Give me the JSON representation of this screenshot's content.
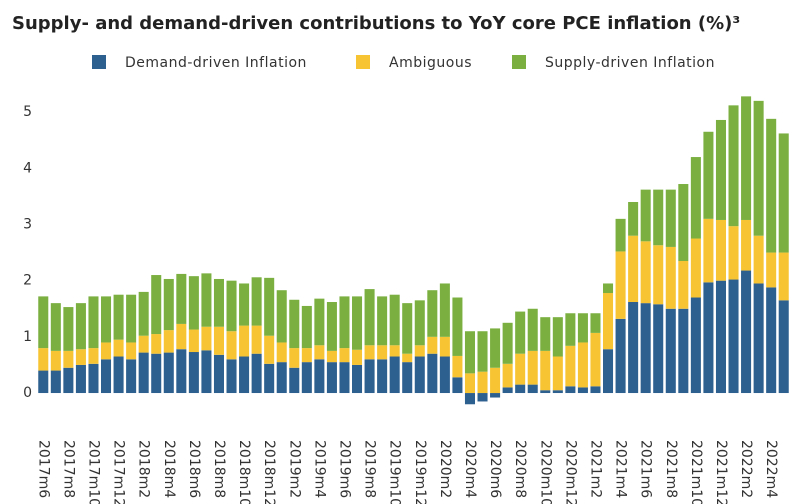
{
  "chart_data": {
    "type": "stacked_bar",
    "title": "Supply- and demand-driven contributions to YoY core PCE inflation (%)³",
    "categories": [
      "2017m6",
      null,
      "2017m8",
      null,
      "2017m10",
      null,
      "2017m12",
      null,
      "2018m2",
      null,
      "2018m4",
      null,
      "2018m6",
      null,
      "2018m8",
      null,
      "2018m10",
      null,
      "2018m12",
      null,
      "2019m2",
      null,
      "2019m4",
      null,
      "2019m6",
      null,
      "2019m8",
      null,
      "2019m10",
      null,
      "2019m12",
      null,
      "2020m2",
      null,
      "2020m4",
      null,
      "2020m6",
      null,
      "2020m8",
      null,
      "2020m10",
      null,
      "2020m12",
      null,
      "2021m2",
      null,
      "2021m4",
      null,
      "2021m6",
      null,
      "2021m8",
      null,
      "2021m10",
      null,
      "2021m12",
      null,
      "2022m2",
      null,
      "2022m4",
      null
    ],
    "series": [
      {
        "name": "Demand-driven Inflation",
        "color": "#2d5f8f",
        "values": [
          0.4,
          0.4,
          0.45,
          0.5,
          0.52,
          0.6,
          0.65,
          0.6,
          0.72,
          0.7,
          0.72,
          0.78,
          0.73,
          0.76,
          0.68,
          0.6,
          0.65,
          0.7,
          0.52,
          0.55,
          0.45,
          0.55,
          0.6,
          0.55,
          0.55,
          0.5,
          0.6,
          0.6,
          0.65,
          0.55,
          0.65,
          0.7,
          0.65,
          0.28,
          -0.2,
          -0.15,
          -0.08,
          0.1,
          0.15,
          0.15,
          0.05,
          0.05,
          0.12,
          0.1,
          0.12,
          0.78,
          1.32,
          1.62,
          1.6,
          1.58,
          1.5,
          1.5,
          1.7,
          1.97,
          2.0,
          2.02,
          2.18,
          1.95,
          1.88,
          1.65
        ]
      },
      {
        "name": "Ambiguous",
        "color": "#f7c433",
        "values": [
          0.4,
          0.35,
          0.3,
          0.28,
          0.28,
          0.3,
          0.3,
          0.3,
          0.3,
          0.35,
          0.4,
          0.45,
          0.4,
          0.42,
          0.5,
          0.5,
          0.55,
          0.5,
          0.5,
          0.35,
          0.35,
          0.25,
          0.25,
          0.2,
          0.25,
          0.27,
          0.25,
          0.25,
          0.2,
          0.15,
          0.2,
          0.3,
          0.35,
          0.38,
          0.35,
          0.38,
          0.45,
          0.42,
          0.55,
          0.6,
          0.7,
          0.6,
          0.72,
          0.8,
          0.95,
          1.0,
          1.2,
          1.18,
          1.1,
          1.05,
          1.1,
          0.85,
          1.05,
          1.13,
          1.08,
          0.95,
          0.9,
          0.85,
          0.62,
          0.85
        ]
      },
      {
        "name": "Supply-driven Inflation",
        "color": "#7bb041",
        "values": [
          0.92,
          0.85,
          0.78,
          0.82,
          0.92,
          0.82,
          0.8,
          0.85,
          0.78,
          1.05,
          0.91,
          0.89,
          0.95,
          0.95,
          0.85,
          0.9,
          0.75,
          0.86,
          1.03,
          0.93,
          0.86,
          0.75,
          0.83,
          0.87,
          0.92,
          0.95,
          1.0,
          0.87,
          0.9,
          0.9,
          0.8,
          0.83,
          0.95,
          1.04,
          0.75,
          0.72,
          0.7,
          0.73,
          0.75,
          0.75,
          0.6,
          0.7,
          0.58,
          0.52,
          0.35,
          0.17,
          0.58,
          0.6,
          0.92,
          0.99,
          1.02,
          1.37,
          1.45,
          1.55,
          1.78,
          2.15,
          2.2,
          2.4,
          2.38,
          2.12
        ]
      }
    ],
    "ylim": [
      -0.35,
      5.5
    ],
    "yticks": [
      0,
      1,
      2,
      3,
      4,
      5
    ],
    "grid": false,
    "legend": "top"
  }
}
